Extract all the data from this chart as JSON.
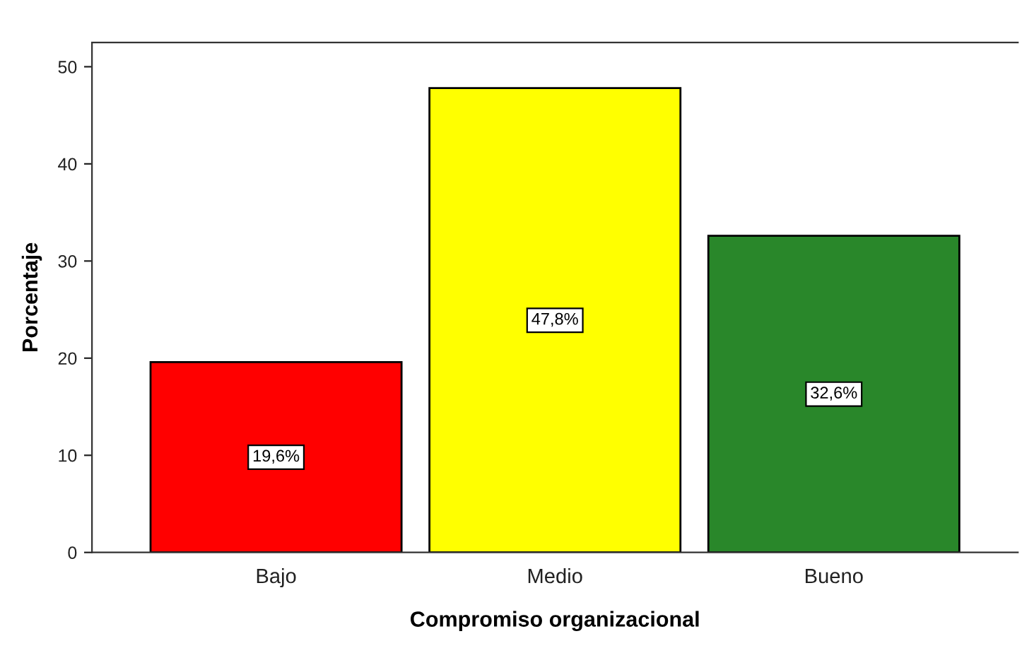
{
  "chart_data": {
    "type": "bar",
    "xlabel": "Compromiso organizacional",
    "ylabel": "Porcentaje",
    "categories": [
      "Bajo",
      "Medio",
      "Bueno"
    ],
    "values": [
      19.6,
      47.8,
      32.6
    ],
    "colors": [
      "#ff0000",
      "#ffff00",
      "#29872a"
    ],
    "value_labels": [
      "19,6%",
      "47,8%",
      "32,6%"
    ],
    "ylim": [
      0,
      52.5
    ],
    "yticks": [
      0,
      10,
      20,
      30,
      40,
      50
    ],
    "grid": false,
    "legend": false
  }
}
